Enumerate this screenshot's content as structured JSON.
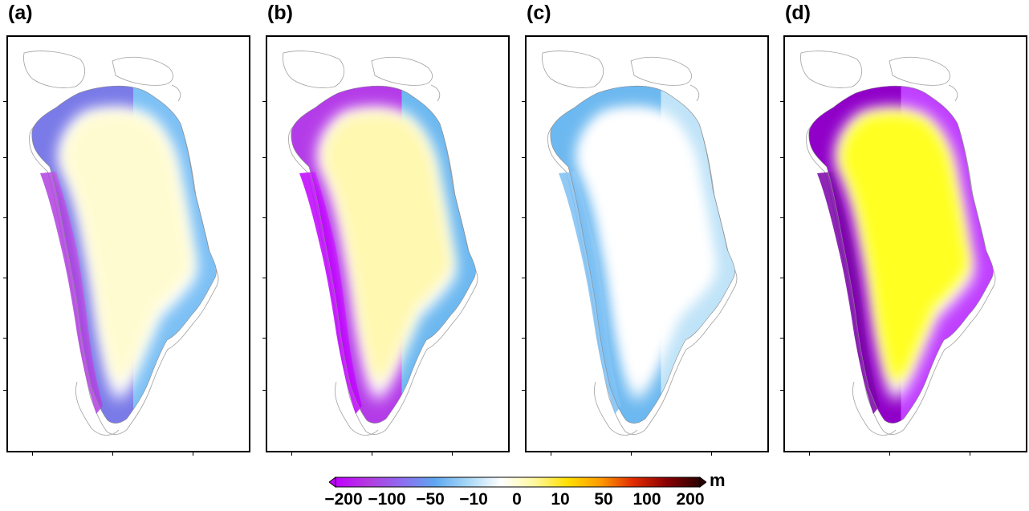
{
  "panels": [
    {
      "label": "(a)",
      "variant": "a"
    },
    {
      "label": "(b)",
      "variant": "b"
    },
    {
      "label": "(c)",
      "variant": "c"
    },
    {
      "label": "(d)",
      "variant": "d"
    }
  ],
  "colorbar": {
    "unit": "m",
    "tick_labels": [
      "−200",
      "−100",
      "−50",
      "−10",
      "0",
      "10",
      "50",
      "100",
      "200"
    ],
    "colors": [
      "#c000ff",
      "#b33be0",
      "#8e6cf0",
      "#5ea7f0",
      "#a8d8f5",
      "#ffffff",
      "#fff8a0",
      "#ffe000",
      "#ff9a00",
      "#e02a00",
      "#8a0000",
      "#2a0000"
    ]
  },
  "palette": {
    "outline": "#9a9a9a",
    "interior_positive": "#ffff80",
    "margin_light_blue": "#6cb8f0",
    "margin_purple": "#a23ae8",
    "margin_dark": "#7a00a8"
  }
}
